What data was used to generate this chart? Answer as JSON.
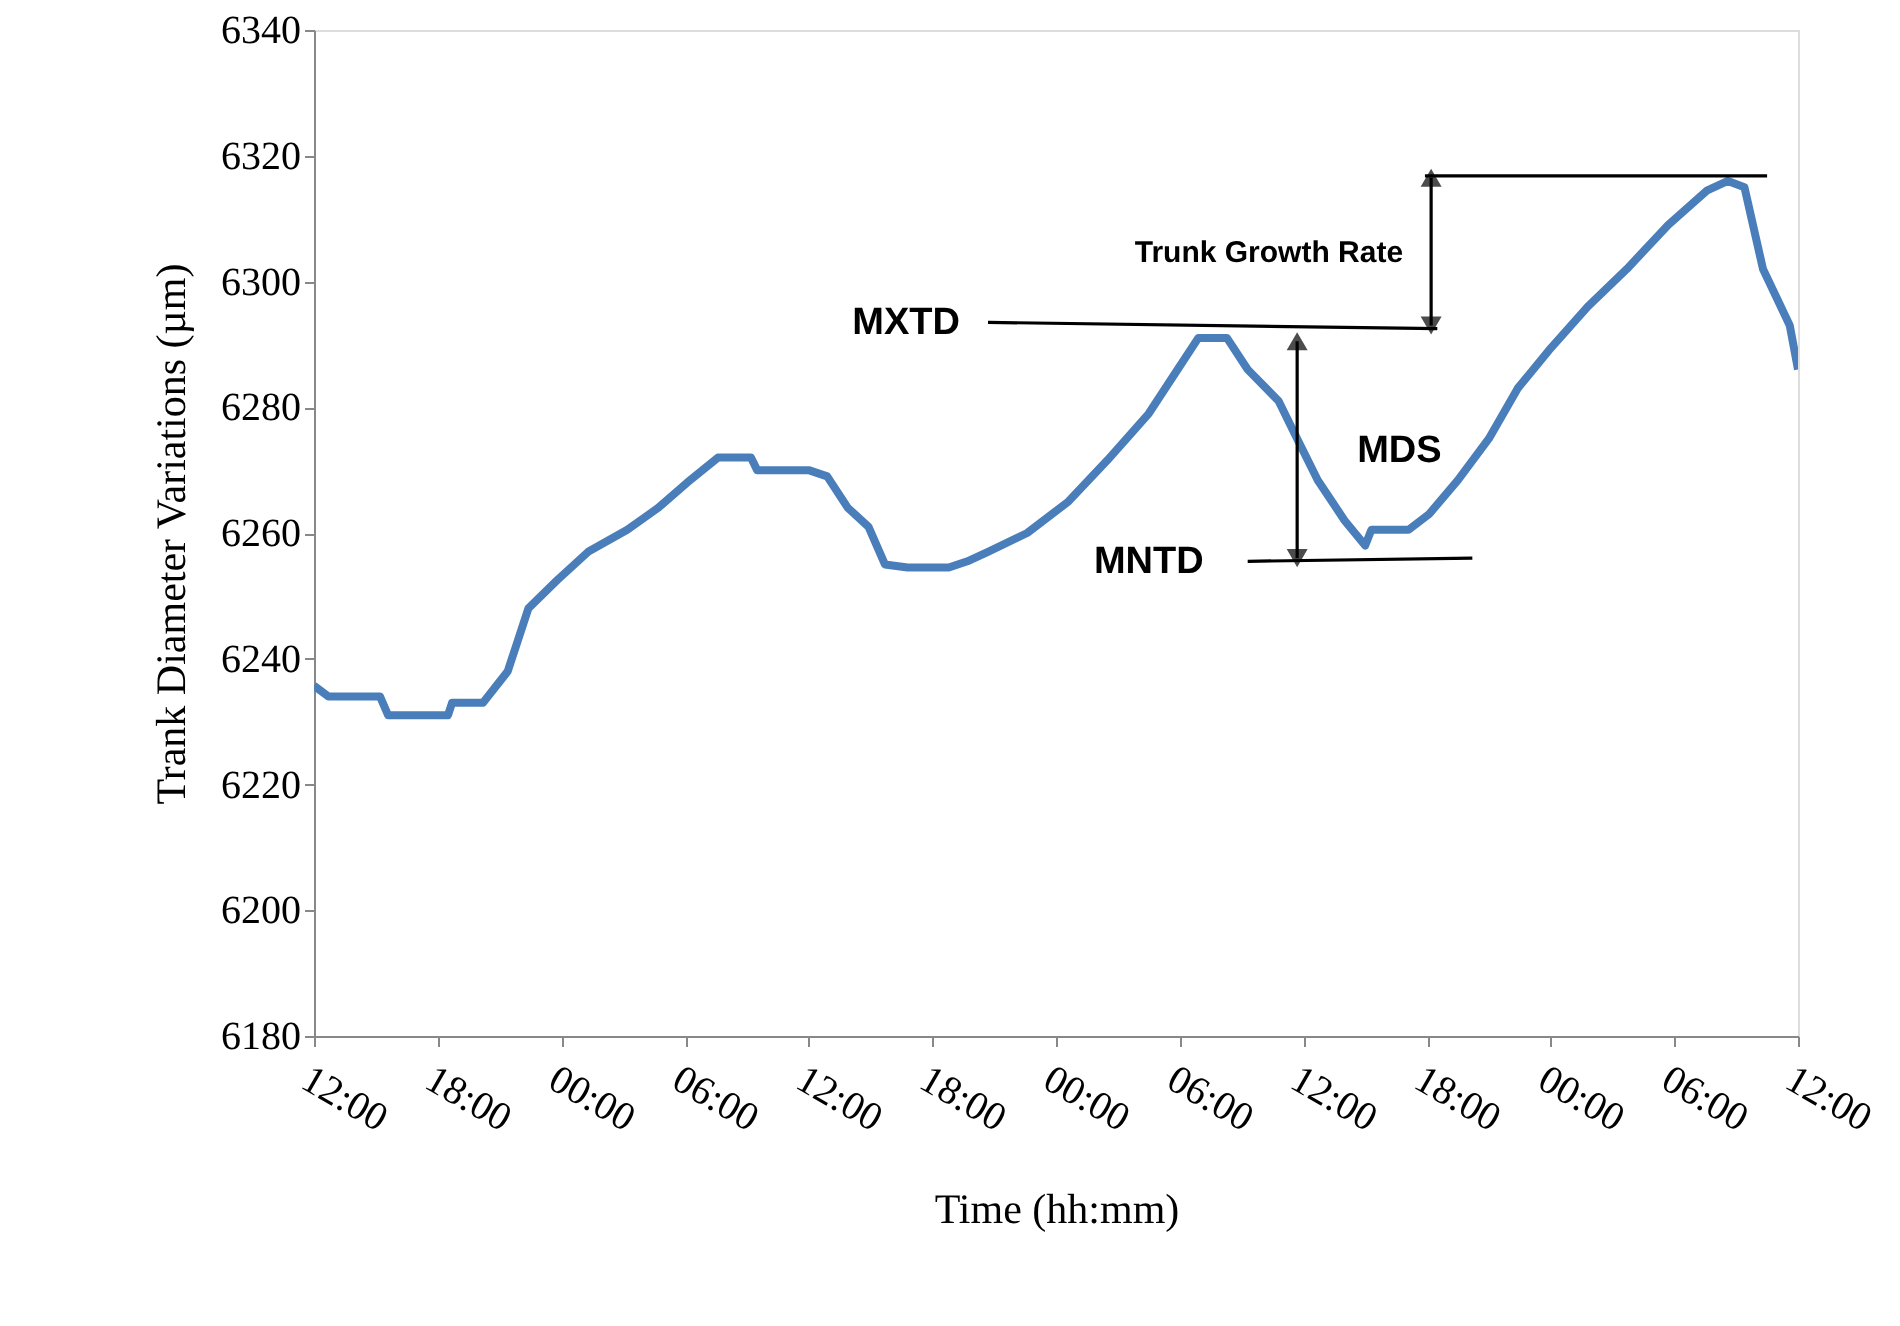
{
  "chart_data": {
    "type": "line",
    "xlabel": "Time (hh:mm)",
    "ylabel": "Trank Diameter Variations (µm)",
    "xlim": [
      "2000-01-01T12:00",
      "2000-01-04T12:00"
    ],
    "xticks": [
      {
        "value": "2000-01-01T12:00",
        "label": "12:00"
      },
      {
        "value": "2000-01-01T18:00",
        "label": "18:00"
      },
      {
        "value": "2000-01-02T00:00",
        "label": "00:00"
      },
      {
        "value": "2000-01-02T06:00",
        "label": "06:00"
      },
      {
        "value": "2000-01-02T12:00",
        "label": "12:00"
      },
      {
        "value": "2000-01-02T18:00",
        "label": "18:00"
      },
      {
        "value": "2000-01-03T00:00",
        "label": "00:00"
      },
      {
        "value": "2000-01-03T06:00",
        "label": "06:00"
      },
      {
        "value": "2000-01-03T12:00",
        "label": "12:00"
      },
      {
        "value": "2000-01-03T18:00",
        "label": "18:00"
      },
      {
        "value": "2000-01-04T00:00",
        "label": "00:00"
      },
      {
        "value": "2000-01-04T06:00",
        "label": "06:00"
      },
      {
        "value": "2000-01-04T12:00",
        "label": "12:00"
      }
    ],
    "ylim": [
      6180,
      6340
    ],
    "yticks": [
      6180,
      6200,
      6220,
      6240,
      6260,
      6280,
      6300,
      6320,
      6340
    ],
    "grid": false,
    "marker": "none",
    "line_style": "solid",
    "series": [
      {
        "color": "#4a7ebb",
        "x": [
          "2000-01-01T12:00",
          "2000-01-01T12:42",
          "2000-01-01T15:12",
          "2000-01-01T15:36",
          "2000-01-01T18:30",
          "2000-01-01T18:42",
          "2000-01-01T20:12",
          "2000-01-01T21:24",
          "2000-01-01T22:24",
          "2000-01-01T23:48",
          "2000-01-02T01:18",
          "2000-01-02T03:12",
          "2000-01-02T04:42",
          "2000-01-02T06:06",
          "2000-01-02T07:36",
          "2000-01-02T09:12",
          "2000-01-02T09:30",
          "2000-01-02T12:00",
          "2000-01-02T12:54",
          "2000-01-02T13:54",
          "2000-01-02T14:54",
          "2000-01-02T15:42",
          "2000-01-02T16:48",
          "2000-01-02T18:48",
          "2000-01-02T19:42",
          "2000-01-02T20:42",
          "2000-01-02T22:36",
          "2000-01-03T00:36",
          "2000-01-03T02:30",
          "2000-01-03T04:30",
          "2000-01-03T05:54",
          "2000-01-03T06:54",
          "2000-01-03T08:18",
          "2000-01-03T09:18",
          "2000-01-03T10:48",
          "2000-01-03T11:42",
          "2000-01-03T12:42",
          "2000-01-03T14:00",
          "2000-01-03T15:00",
          "2000-01-03T15:18",
          "2000-01-03T17:06",
          "2000-01-03T18:06",
          "2000-01-03T19:30",
          "2000-01-03T21:00",
          "2000-01-03T22:24",
          "2000-01-03T23:54",
          "2000-01-04T01:48",
          "2000-01-04T03:42",
          "2000-01-04T05:42",
          "2000-01-04T07:36",
          "2000-01-04T08:36",
          "2000-01-04T09:24",
          "2000-01-04T10:18",
          "2000-01-04T11:36",
          "2000-01-04T12:00"
        ],
        "values": [
          6235.7,
          6234,
          6234,
          6231,
          6231,
          6233,
          6233,
          6238,
          6248,
          6252.5,
          6257,
          6260.5,
          6264,
          6268,
          6272,
          6272,
          6270,
          6270,
          6269,
          6264,
          6261,
          6255,
          6254.5,
          6254.5,
          6255.5,
          6257,
          6260,
          6265,
          6271.6,
          6279,
          6286,
          6291,
          6291,
          6286,
          6281,
          6275,
          6268.4,
          6262,
          6258,
          6260.5,
          6260.5,
          6263,
          6268.4,
          6275,
          6283,
          6289,
          6296,
          6302,
          6309,
          6314.5,
          6316,
          6315,
          6302,
          6293,
          6286
        ]
      },
      {
        "color": "#000000",
        "x": [
          "2000-01-02T20:42",
          "2000-01-03T18:30"
        ],
        "values": [
          6293.5,
          6292.5
        ]
      },
      {
        "color": "#000000",
        "x": [
          "2000-01-03T09:18",
          "2000-01-03T20:12"
        ],
        "values": [
          6255.5,
          6256
        ]
      },
      {
        "color": "#000000",
        "x": [
          "2000-01-03T17:54",
          "2000-01-04T10:30"
        ],
        "values": [
          6316.8,
          6316.8
        ]
      },
      {
        "color": "#000000",
        "marker": "triangle",
        "x": [
          "2000-01-03T11:42",
          "2000-01-03T11:42"
        ],
        "values": [
          6290.5,
          6256
        ]
      },
      {
        "color": "#000000",
        "marker": "triangle",
        "x": [
          "2000-01-03T18:12",
          "2000-01-03T18:12"
        ],
        "values": [
          6316.5,
          6293
        ]
      }
    ],
    "annotations": [
      "Trunk Growth Rate",
      "MXTD",
      "MDS",
      "MNTD"
    ]
  }
}
